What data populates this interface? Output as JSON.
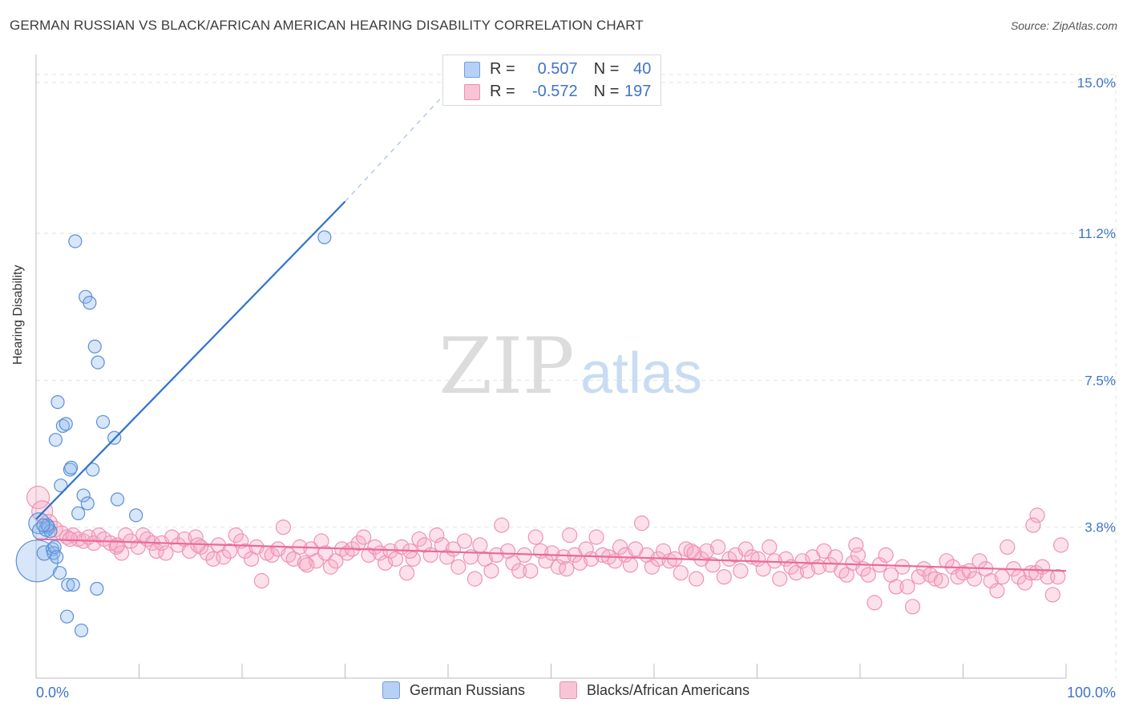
{
  "title": "GERMAN RUSSIAN VS BLACK/AFRICAN AMERICAN HEARING DISABILITY CORRELATION CHART",
  "source": "Source: ZipAtlas.com",
  "watermark": {
    "zip": "ZIP",
    "atlas": "atlas"
  },
  "legend_top": {
    "r_label": "R =",
    "n_label": "N =",
    "rows": [
      {
        "name": "German Russians",
        "r": "0.507",
        "n": "40",
        "fill": "#aecbf2",
        "stroke": "#6e9fe0"
      },
      {
        "name": "Blacks/African Americans",
        "r": "-0.572",
        "n": "197",
        "fill": "#f8bcd0",
        "stroke": "#ec8fae"
      }
    ]
  },
  "legend_bottom": [
    "German Russians",
    "Blacks/African Americans"
  ],
  "colors": {
    "blue_fill": "rgba(141,182,235,0.35)",
    "blue_stroke": "#5a8fd6",
    "blue_line": "#2f72d0",
    "pink_fill": "rgba(246,170,196,0.35)",
    "pink_stroke": "#ee93b3",
    "pink_line": "#e96a9a",
    "grid": "#e3e3e3",
    "tick_text": "#3f73c9"
  },
  "chart_data": {
    "type": "scatter",
    "title": "GERMAN RUSSIAN VS BLACK/AFRICAN AMERICAN HEARING DISABILITY CORRELATION CHART",
    "xlabel": "",
    "ylabel": "Hearing Disability",
    "xlim": [
      0,
      100
    ],
    "ylim": [
      0,
      15.5
    ],
    "x_tick_labels": [
      "0.0%",
      "100.0%"
    ],
    "y_ticks": [
      3.8,
      7.5,
      11.2,
      15.0
    ],
    "y_tick_labels": [
      "3.8%",
      "7.5%",
      "11.2%",
      "15.0%"
    ],
    "grid": true,
    "series": [
      {
        "name": "German Russians",
        "r": 0.507,
        "n": 40,
        "trend": {
          "x0": 0,
          "y0": 4.0,
          "x1": 30,
          "y1": 12.0,
          "dash_to_x": 40,
          "dash_to_y": 14.8
        },
        "points": [
          [
            0.1,
            2.95,
            26
          ],
          [
            0.3,
            3.9,
            13
          ],
          [
            0.5,
            3.7,
            11
          ],
          [
            0.8,
            3.15,
            9
          ],
          [
            1.0,
            3.75,
            9
          ],
          [
            1.2,
            3.8,
            8
          ],
          [
            1.4,
            3.7,
            8
          ],
          [
            1.6,
            3.25,
            8
          ],
          [
            1.7,
            3.15,
            8
          ],
          [
            1.8,
            3.3,
            8
          ],
          [
            2.0,
            3.05,
            8
          ],
          [
            1.9,
            6.0,
            8
          ],
          [
            2.1,
            6.95,
            8
          ],
          [
            2.3,
            2.65,
            8
          ],
          [
            2.4,
            4.85,
            8
          ],
          [
            2.6,
            6.35,
            8
          ],
          [
            2.9,
            6.4,
            8
          ],
          [
            3.0,
            1.55,
            8
          ],
          [
            3.1,
            2.35,
            8
          ],
          [
            3.3,
            5.25,
            8
          ],
          [
            3.4,
            5.3,
            8
          ],
          [
            3.6,
            2.35,
            8
          ],
          [
            3.8,
            11.0,
            8
          ],
          [
            4.1,
            4.15,
            8
          ],
          [
            4.4,
            1.2,
            8
          ],
          [
            4.6,
            4.6,
            8
          ],
          [
            4.8,
            9.6,
            8
          ],
          [
            5.0,
            4.4,
            8
          ],
          [
            5.2,
            9.45,
            8
          ],
          [
            5.5,
            5.25,
            8
          ],
          [
            5.7,
            8.35,
            8
          ],
          [
            5.9,
            2.25,
            8
          ],
          [
            6.0,
            7.95,
            8
          ],
          [
            6.5,
            6.45,
            8
          ],
          [
            7.6,
            6.05,
            8
          ],
          [
            7.9,
            4.5,
            8
          ],
          [
            9.7,
            4.1,
            8
          ],
          [
            28.0,
            11.1,
            8
          ],
          [
            1.1,
            3.85,
            8
          ],
          [
            0.7,
            3.85,
            8
          ]
        ]
      },
      {
        "name": "Blacks/African Americans",
        "r": -0.572,
        "n": 197,
        "trend": {
          "x0": 0,
          "y0": 3.5,
          "x1": 100,
          "y1": 2.7
        },
        "points": [
          [
            0.2,
            4.55,
            14
          ],
          [
            0.6,
            4.2,
            13
          ],
          [
            1.2,
            3.9,
            11
          ],
          [
            1.8,
            3.75,
            10
          ],
          [
            2.5,
            3.65,
            9
          ],
          [
            3.0,
            3.55,
            9
          ],
          [
            3.6,
            3.6,
            9
          ],
          [
            4.1,
            3.5,
            9
          ],
          [
            4.6,
            3.45,
            9
          ],
          [
            5.1,
            3.55,
            9
          ],
          [
            5.6,
            3.4,
            9
          ],
          [
            6.1,
            3.6,
            9
          ],
          [
            6.6,
            3.5,
            9
          ],
          [
            7.2,
            3.4,
            9
          ],
          [
            7.8,
            3.3,
            9
          ],
          [
            8.3,
            3.15,
            9
          ],
          [
            8.7,
            3.6,
            9
          ],
          [
            9.2,
            3.45,
            9
          ],
          [
            9.9,
            3.3,
            9
          ],
          [
            10.4,
            3.6,
            9
          ],
          [
            10.8,
            3.5,
            9
          ],
          [
            11.3,
            3.4,
            9
          ],
          [
            11.7,
            3.2,
            9
          ],
          [
            12.2,
            3.4,
            9
          ],
          [
            12.6,
            3.15,
            9
          ],
          [
            13.2,
            3.55,
            9
          ],
          [
            13.8,
            3.35,
            9
          ],
          [
            14.4,
            3.5,
            9
          ],
          [
            14.9,
            3.2,
            9
          ],
          [
            15.5,
            3.55,
            9
          ],
          [
            16.0,
            3.3,
            9
          ],
          [
            16.6,
            3.15,
            9
          ],
          [
            17.2,
            3.0,
            9
          ],
          [
            17.7,
            3.35,
            9
          ],
          [
            18.2,
            3.05,
            9
          ],
          [
            18.8,
            3.2,
            9
          ],
          [
            19.4,
            3.6,
            9
          ],
          [
            19.9,
            3.45,
            9
          ],
          [
            20.3,
            3.2,
            9
          ],
          [
            20.9,
            3.0,
            9
          ],
          [
            21.4,
            3.3,
            9
          ],
          [
            21.9,
            2.45,
            9
          ],
          [
            22.4,
            3.15,
            9
          ],
          [
            22.9,
            3.1,
            9
          ],
          [
            23.5,
            3.25,
            9
          ],
          [
            24.0,
            3.8,
            9
          ],
          [
            24.5,
            3.1,
            9
          ],
          [
            25.0,
            3.0,
            9
          ],
          [
            25.6,
            3.3,
            9
          ],
          [
            26.1,
            2.9,
            9
          ],
          [
            26.7,
            3.25,
            9
          ],
          [
            27.2,
            2.95,
            9
          ],
          [
            27.7,
            3.45,
            9
          ],
          [
            28.1,
            3.15,
            9
          ],
          [
            28.6,
            2.8,
            9
          ],
          [
            29.1,
            2.95,
            9
          ],
          [
            29.7,
            3.25,
            9
          ],
          [
            30.2,
            3.15,
            9
          ],
          [
            30.7,
            3.25,
            9
          ],
          [
            31.3,
            3.4,
            9
          ],
          [
            31.8,
            3.55,
            9
          ],
          [
            32.3,
            3.1,
            9
          ],
          [
            32.9,
            3.3,
            9
          ],
          [
            33.4,
            3.15,
            9
          ],
          [
            33.9,
            2.9,
            9
          ],
          [
            34.4,
            3.2,
            9
          ],
          [
            34.9,
            3.0,
            9
          ],
          [
            35.5,
            3.3,
            9
          ],
          [
            36.0,
            2.65,
            9
          ],
          [
            36.6,
            3.0,
            9
          ],
          [
            37.2,
            3.5,
            9
          ],
          [
            37.7,
            3.35,
            9
          ],
          [
            38.3,
            3.1,
            9
          ],
          [
            38.9,
            3.6,
            9
          ],
          [
            39.4,
            3.35,
            9
          ],
          [
            39.9,
            3.05,
            9
          ],
          [
            40.5,
            3.25,
            9
          ],
          [
            41.0,
            2.8,
            9
          ],
          [
            41.6,
            3.45,
            9
          ],
          [
            42.2,
            3.05,
            9
          ],
          [
            42.6,
            2.5,
            9
          ],
          [
            43.1,
            3.35,
            9
          ],
          [
            43.6,
            3.0,
            9
          ],
          [
            44.2,
            2.7,
            9
          ],
          [
            44.7,
            3.1,
            9
          ],
          [
            45.2,
            3.85,
            9
          ],
          [
            45.8,
            3.2,
            9
          ],
          [
            46.3,
            2.9,
            9
          ],
          [
            46.9,
            2.7,
            9
          ],
          [
            47.4,
            3.1,
            9
          ],
          [
            48.0,
            2.7,
            9
          ],
          [
            48.5,
            3.55,
            9
          ],
          [
            49.0,
            3.2,
            9
          ],
          [
            49.5,
            2.95,
            9
          ],
          [
            50.1,
            3.15,
            9
          ],
          [
            50.7,
            2.8,
            9
          ],
          [
            51.2,
            3.05,
            9
          ],
          [
            51.8,
            3.6,
            9
          ],
          [
            52.3,
            3.1,
            9
          ],
          [
            52.8,
            2.9,
            9
          ],
          [
            53.4,
            3.25,
            9
          ],
          [
            53.9,
            3.0,
            9
          ],
          [
            54.4,
            3.55,
            9
          ],
          [
            55.0,
            3.1,
            9
          ],
          [
            55.6,
            3.05,
            9
          ],
          [
            56.2,
            2.95,
            9
          ],
          [
            56.7,
            3.3,
            9
          ],
          [
            57.2,
            3.1,
            9
          ],
          [
            57.7,
            2.85,
            9
          ],
          [
            58.2,
            3.25,
            9
          ],
          [
            58.8,
            3.9,
            9
          ],
          [
            59.3,
            3.1,
            9
          ],
          [
            59.8,
            2.8,
            9
          ],
          [
            60.4,
            3.0,
            9
          ],
          [
            60.9,
            3.2,
            9
          ],
          [
            61.5,
            2.95,
            9
          ],
          [
            62.0,
            3.0,
            9
          ],
          [
            62.6,
            2.65,
            9
          ],
          [
            63.1,
            3.25,
            9
          ],
          [
            63.6,
            3.2,
            9
          ],
          [
            64.1,
            2.5,
            9
          ],
          [
            64.6,
            3.0,
            9
          ],
          [
            65.1,
            3.2,
            9
          ],
          [
            65.7,
            2.85,
            9
          ],
          [
            66.2,
            3.3,
            9
          ],
          [
            66.8,
            2.55,
            9
          ],
          [
            67.3,
            3.0,
            9
          ],
          [
            67.9,
            3.1,
            9
          ],
          [
            68.4,
            2.7,
            9
          ],
          [
            68.9,
            3.25,
            9
          ],
          [
            69.5,
            3.05,
            9
          ],
          [
            70.1,
            3.0,
            9
          ],
          [
            70.6,
            2.75,
            9
          ],
          [
            71.2,
            3.3,
            9
          ],
          [
            71.7,
            2.95,
            9
          ],
          [
            72.2,
            2.5,
            9
          ],
          [
            72.8,
            3.0,
            9
          ],
          [
            73.3,
            2.8,
            9
          ],
          [
            73.8,
            2.65,
            9
          ],
          [
            74.4,
            2.95,
            9
          ],
          [
            74.9,
            2.7,
            9
          ],
          [
            75.4,
            3.05,
            9
          ],
          [
            76.0,
            2.8,
            9
          ],
          [
            76.5,
            3.2,
            9
          ],
          [
            77.1,
            2.85,
            9
          ],
          [
            77.6,
            3.05,
            9
          ],
          [
            78.2,
            2.7,
            9
          ],
          [
            78.7,
            2.6,
            9
          ],
          [
            79.3,
            2.9,
            9
          ],
          [
            79.8,
            3.1,
            9
          ],
          [
            80.3,
            2.75,
            9
          ],
          [
            80.8,
            2.6,
            9
          ],
          [
            81.4,
            1.9,
            9
          ],
          [
            81.9,
            2.85,
            9
          ],
          [
            82.5,
            3.1,
            9
          ],
          [
            83.0,
            2.6,
            9
          ],
          [
            83.5,
            2.3,
            9
          ],
          [
            84.1,
            2.8,
            9
          ],
          [
            84.6,
            2.3,
            9
          ],
          [
            85.1,
            1.8,
            9
          ],
          [
            85.7,
            2.55,
            9
          ],
          [
            86.2,
            2.75,
            9
          ],
          [
            86.8,
            2.6,
            9
          ],
          [
            87.3,
            2.5,
            9
          ],
          [
            87.9,
            2.45,
            9
          ],
          [
            88.4,
            2.95,
            9
          ],
          [
            89.0,
            2.8,
            9
          ],
          [
            89.5,
            2.55,
            9
          ],
          [
            90.0,
            2.65,
            9
          ],
          [
            90.6,
            2.7,
            9
          ],
          [
            91.1,
            2.5,
            9
          ],
          [
            91.6,
            2.95,
            9
          ],
          [
            92.2,
            2.75,
            9
          ],
          [
            92.7,
            2.45,
            9
          ],
          [
            93.3,
            2.2,
            9
          ],
          [
            93.8,
            2.55,
            9
          ],
          [
            94.3,
            3.3,
            9
          ],
          [
            94.9,
            2.75,
            9
          ],
          [
            95.4,
            2.55,
            9
          ],
          [
            96.0,
            2.4,
            9
          ],
          [
            96.6,
            2.65,
            9
          ],
          [
            97.1,
            2.65,
            9
          ],
          [
            97.7,
            2.8,
            9
          ],
          [
            98.2,
            2.55,
            9
          ],
          [
            98.7,
            2.1,
            9
          ],
          [
            99.2,
            2.55,
            9
          ],
          [
            97.2,
            4.1,
            9
          ],
          [
            96.8,
            3.85,
            9
          ],
          [
            99.5,
            3.35,
            9
          ],
          [
            79.6,
            3.35,
            9
          ],
          [
            63.9,
            3.15,
            9
          ],
          [
            51.5,
            2.75,
            9
          ],
          [
            36.3,
            3.2,
            9
          ],
          [
            26.3,
            2.85,
            9
          ],
          [
            15.7,
            3.35,
            9
          ],
          [
            7.9,
            3.35,
            9
          ],
          [
            3.3,
            3.5,
            9
          ]
        ]
      }
    ]
  }
}
